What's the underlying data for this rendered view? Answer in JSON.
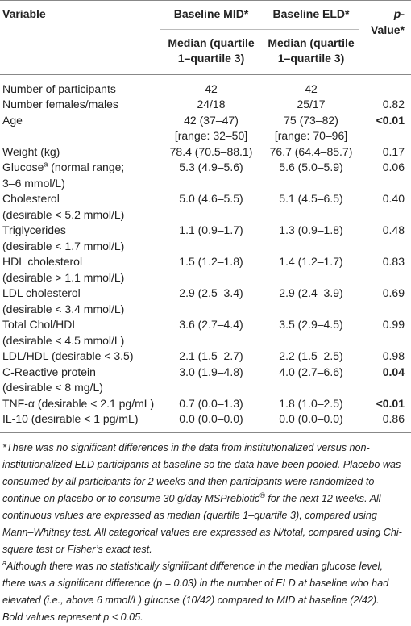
{
  "header": {
    "variable": "Variable",
    "mid": "Baseline MID*",
    "eld": "Baseline ELD*",
    "p_symbol": "p",
    "p_label": [
      "-",
      "Value*"
    ],
    "mid_sub": [
      "Median (quartile",
      "1–quartile 3)"
    ],
    "eld_sub": [
      "Median (quartile",
      "1–quartile 3)"
    ]
  },
  "rows": [
    {
      "variable": [
        "Number of participants"
      ],
      "mid": [
        "42"
      ],
      "eld": [
        "42"
      ]
    },
    {
      "variable": [
        "Number females/males"
      ],
      "mid": [
        "24/18"
      ],
      "eld": [
        "25/17"
      ],
      "p": "0.82"
    },
    {
      "variable": [
        "Age"
      ],
      "mid": [
        "42 (37–47)",
        "[range: 32–50]"
      ],
      "eld": [
        "75 (73–82)",
        "[range: 70–96]"
      ],
      "p": "<0.01",
      "p_bold": true
    },
    {
      "variable": [
        "Weight (kg)"
      ],
      "mid": [
        "78.4 (70.5–88.1)"
      ],
      "eld": [
        "76.7 (64.4–85.7)"
      ],
      "p": "0.17"
    },
    {
      "variable": [
        "Glucose",
        "(normal range;",
        "3–6 mmol/L)"
      ],
      "note": "a",
      "mid": [
        "5.3 (4.9–5.6)"
      ],
      "eld": [
        "5.6 (5.0–5.9)"
      ],
      "p": "0.06"
    },
    {
      "variable": [
        "Cholesterol",
        "(desirable < 5.2 mmol/L)"
      ],
      "mid": [
        "5.0 (4.6–5.5)"
      ],
      "eld": [
        "5.1 (4.5–6.5)"
      ],
      "p": "0.40"
    },
    {
      "variable": [
        "Triglycerides",
        "(desirable < 1.7 mmol/L)"
      ],
      "mid": [
        "1.1 (0.9–1.7)"
      ],
      "eld": [
        "1.3 (0.9–1.8)"
      ],
      "p": "0.48"
    },
    {
      "variable": [
        "HDL cholesterol",
        "(desirable > 1.1 mmol/L)"
      ],
      "mid": [
        "1.5 (1.2–1.8)"
      ],
      "eld": [
        "1.4 (1.2–1.7)"
      ],
      "p": "0.83"
    },
    {
      "variable": [
        "LDL cholesterol",
        "(desirable < 3.4 mmol/L)"
      ],
      "mid": [
        "2.9 (2.5–3.4)"
      ],
      "eld": [
        "2.9 (2.4–3.9)"
      ],
      "p": "0.69"
    },
    {
      "variable": [
        "Total Chol/HDL",
        "(desirable < 4.5 mmol/L)"
      ],
      "mid": [
        "3.6 (2.7–4.4)"
      ],
      "eld": [
        "3.5 (2.9–4.5)"
      ],
      "p": "0.99"
    },
    {
      "variable": [
        "LDL/HDL (desirable < 3.5)"
      ],
      "mid": [
        "2.1 (1.5–2.7)"
      ],
      "eld": [
        "2.2 (1.5–2.5)"
      ],
      "p": "0.98"
    },
    {
      "variable": [
        "C-Reactive protein",
        "(desirable < 8 mg/L)"
      ],
      "mid": [
        "3.0 (1.9–4.8)"
      ],
      "eld": [
        "4.0 (2.7–6.6)"
      ],
      "p": "0.04",
      "p_bold": true
    },
    {
      "variable": [
        "TNF-α (desirable < 2.1 pg/mL)"
      ],
      "mid": [
        "0.7 (0.0–1.3)"
      ],
      "eld": [
        "1.8 (1.0–2.5)"
      ],
      "p": "<0.01",
      "p_bold": true
    },
    {
      "variable": [
        "IL-10 (desirable < 1 pg/mL)"
      ],
      "mid": [
        "0.0 (0.0–0.0)"
      ],
      "eld": [
        "0.0 (0.0–0.0)"
      ],
      "p": "0.86"
    }
  ],
  "footnotes": {
    "first": [
      "*There was no significant differences in the data from institutionalized versus non-institutionalized ELD participants at baseline so the data have been pooled. Placebo was consumed by all participants for 2 weeks and then participants were randomized to continue on placebo or to consume 30 g/day MSPrebiotic",
      "®",
      " for the next 12 weeks. All continuous values are expressed as median (quartile 1–quartile 3), compared using Mann–Whitney test. All categorical values are expressed as N/total, compared using Chi-square test or Fisher’s exact test."
    ],
    "second_mark": "a",
    "second": "Although there was no statistically significant difference in the median glucose level, there was a significant difference (p = 0.03) in the number of ELD at baseline who had elevated (i.e., above 6 mmol/L) glucose (10/42) compared to MID at baseline (2/42).",
    "third": "Bold values represent p < 0.05."
  }
}
